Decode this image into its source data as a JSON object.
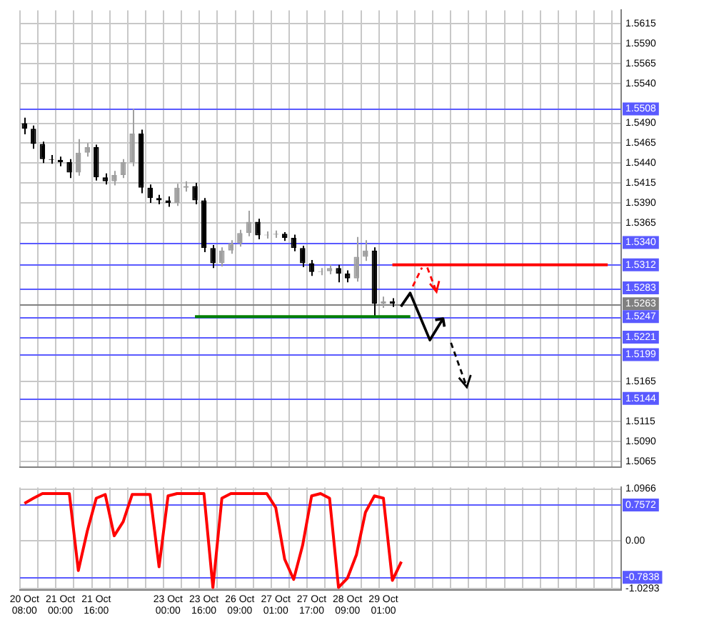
{
  "chart_data": [
    {
      "type": "candlestick",
      "categories": [
        null,
        null,
        null,
        null,
        null,
        null,
        null,
        null,
        null,
        null,
        null,
        null,
        null,
        null,
        null,
        null,
        null,
        null,
        null,
        null,
        null,
        null,
        null,
        null,
        null,
        null,
        null,
        null,
        null,
        null,
        null,
        null,
        null,
        null,
        null,
        null,
        null,
        null,
        null,
        null,
        null,
        null,
        null,
        null,
        null,
        null,
        null,
        null,
        null,
        null,
        null,
        null,
        null,
        null,
        null,
        null,
        null,
        null,
        null,
        null,
        null,
        null,
        null,
        null,
        null,
        null,
        null
      ],
      "colors": [
        "#000000",
        "#000000",
        "#000000",
        "#000000",
        "#000000",
        "#000000",
        "#a0a0a0",
        "#a0a0a0",
        "#000000",
        "#000000",
        "#a0a0a0",
        "#a0a0a0",
        "#a0a0a0",
        "#000000",
        "#000000",
        "#000000",
        "#000000",
        "#a0a0a0",
        "#a0a0a0",
        "#000000",
        "#000000",
        "#000000",
        "#a0a0a0",
        "#a0a0a0",
        "#a0a0a0",
        "#a0a0a0",
        "#000000",
        "#a0a0a0",
        "#a0a0a0",
        "#000000",
        "#000000",
        "#000000",
        "#000000",
        "#a0a0a0",
        "#a0a0a0",
        "#000000",
        "#000000",
        "#a0a0a0",
        "#a0a0a0",
        "#000000",
        "#a0a0a0",
        "#000000",
        null,
        null,
        null,
        null,
        null,
        null,
        null,
        null,
        null,
        null,
        null,
        null,
        null,
        null,
        null,
        null,
        null,
        null,
        null,
        null,
        null,
        null,
        null,
        null,
        null
      ],
      "ohlc": [
        [
          1.549,
          1.5497,
          1.5476,
          1.5483
        ],
        [
          1.5483,
          1.5487,
          1.5458,
          1.5464
        ],
        [
          1.5464,
          1.5467,
          1.544,
          1.5445
        ],
        [
          1.5445,
          1.545,
          1.5439,
          1.5444
        ],
        [
          1.5444,
          1.5448,
          1.5436,
          1.5441
        ],
        [
          1.5441,
          1.5445,
          1.5421,
          1.5428
        ],
        [
          1.5428,
          1.547,
          1.5424,
          1.5453
        ],
        [
          1.5453,
          1.5465,
          1.5448,
          1.546
        ],
        [
          1.546,
          1.5463,
          1.5418,
          1.5422
        ],
        [
          1.5422,
          1.5427,
          1.5413,
          1.5417
        ],
        [
          1.5417,
          1.543,
          1.5412,
          1.5425
        ],
        [
          1.5425,
          1.5445,
          1.5421,
          1.5441
        ],
        [
          1.5441,
          1.5508,
          1.5436,
          1.5477
        ],
        [
          1.5477,
          1.5482,
          1.5402,
          1.5409
        ],
        [
          1.5409,
          1.5413,
          1.539,
          1.5396
        ],
        [
          1.5396,
          1.54,
          1.5388,
          1.5393
        ],
        [
          1.5393,
          1.5398,
          1.5385,
          1.539
        ],
        [
          1.539,
          1.5414,
          1.5386,
          1.5409
        ],
        [
          1.5409,
          1.5417,
          1.5404,
          1.5411
        ],
        [
          1.5411,
          1.5415,
          1.5388,
          1.5393
        ],
        [
          1.5393,
          1.5396,
          1.5328,
          1.5333
        ],
        [
          1.5333,
          1.5337,
          1.5308,
          1.5314
        ],
        [
          1.5314,
          1.5334,
          1.531,
          1.533
        ],
        [
          1.533,
          1.5343,
          1.5326,
          1.5339
        ],
        [
          1.5339,
          1.5356,
          1.5335,
          1.5352
        ],
        [
          1.5352,
          1.538,
          1.5348,
          1.5366
        ],
        [
          1.5366,
          1.537,
          1.5344,
          1.5349
        ],
        [
          1.5349,
          1.5354,
          1.5345,
          1.535
        ],
        [
          1.535,
          1.5355,
          1.5346,
          1.5351
        ],
        [
          1.5351,
          1.5353,
          1.5342,
          1.5346
        ],
        [
          1.5346,
          1.535,
          1.5329,
          1.5333
        ],
        [
          1.5333,
          1.5336,
          1.5309,
          1.5314
        ],
        [
          1.5314,
          1.5318,
          1.5298,
          1.5303
        ],
        [
          1.5303,
          1.5308,
          1.5299,
          1.5304
        ],
        [
          1.5304,
          1.5312,
          1.53,
          1.5308
        ],
        [
          1.5308,
          1.5312,
          1.529,
          1.5301
        ],
        [
          1.5301,
          1.5305,
          1.529,
          1.5295
        ],
        [
          1.5295,
          1.5347,
          1.5291,
          1.5322
        ],
        [
          1.5322,
          1.5343,
          1.5317,
          1.533
        ],
        [
          1.533,
          1.5334,
          1.5247,
          1.5263
        ],
        [
          1.5263,
          1.5272,
          1.5258,
          1.5266
        ],
        [
          1.5266,
          1.527,
          1.5259,
          1.5263
        ],
        null,
        null,
        null,
        null,
        null,
        null,
        null,
        null,
        null,
        null,
        null,
        null,
        null,
        null,
        null,
        null,
        null,
        null,
        null,
        null,
        null,
        null,
        null,
        null,
        null
      ],
      "series": [
        {
          "type": "line",
          "color": "#ff0000",
          "values": [
            null,
            null,
            null,
            null,
            null,
            null,
            null,
            null,
            null,
            null,
            null,
            null,
            null,
            null,
            null,
            null,
            null,
            null,
            null,
            null,
            null,
            null,
            null,
            null,
            null,
            null,
            null,
            null,
            null,
            null,
            null,
            null,
            null,
            null,
            null,
            null,
            null,
            null,
            null,
            null,
            null,
            1.5312,
            1.5312,
            1.5312,
            1.5312,
            1.5312,
            1.5312,
            1.5312,
            1.5312,
            1.5312,
            1.5312,
            1.5312,
            1.5312,
            1.5312,
            1.5312,
            1.5312,
            1.5312,
            1.5312,
            1.5312,
            1.5312,
            1.5312,
            1.5312,
            1.5312,
            1.5312,
            1.5312,
            1.5312,
            null
          ]
        },
        {
          "type": "line",
          "color": "#008000",
          "values": [
            null,
            null,
            null,
            null,
            null,
            null,
            null,
            null,
            null,
            null,
            null,
            null,
            null,
            null,
            null,
            null,
            null,
            null,
            null,
            1.5247,
            1.5247,
            1.5247,
            1.5247,
            1.5247,
            1.5247,
            1.5247,
            1.5247,
            1.5247,
            1.5247,
            1.5247,
            1.5247,
            1.5247,
            1.5247,
            1.5247,
            1.5247,
            1.5247,
            1.5247,
            1.5247,
            1.5247,
            1.5247,
            1.5247,
            1.5247,
            1.5247,
            1.5247,
            null,
            null,
            null,
            null,
            null,
            null,
            null,
            null,
            null,
            null,
            null,
            null,
            null,
            null,
            null,
            null,
            null,
            null,
            null,
            null,
            null,
            null,
            null
          ]
        }
      ],
      "ylim": [
        1.5058,
        1.5632
      ],
      "yticks": [
        1.5615,
        {
          "value": 1.559,
          "label": "1.5590"
        },
        1.5565,
        {
          "value": 1.554,
          "label": "1.5540"
        },
        {
          "value": 1.549,
          "label": "1.5490"
        },
        1.5465,
        {
          "value": 1.544,
          "label": "1.5440"
        },
        1.5415,
        {
          "value": 1.539,
          "label": "1.5390"
        },
        1.5365,
        1.5165,
        1.5115,
        {
          "value": 1.509,
          "label": "1.5090"
        },
        1.5065
      ],
      "ref_lines": [
        {
          "axis": "y",
          "value": 1.5508,
          "label": "1.5508",
          "color": "#5a5aff"
        },
        {
          "axis": "y",
          "value": 1.534,
          "label": "1.5340",
          "color": "#5a5aff"
        },
        {
          "axis": "y",
          "value": 1.5312,
          "label": "1.5312",
          "color": "#5a5aff"
        },
        {
          "axis": "y",
          "value": 1.5283,
          "label": "1.5283",
          "color": "#5a5aff"
        },
        {
          "axis": "y",
          "value": 1.5263,
          "label": "1.5263",
          "color": "#808080"
        },
        {
          "axis": "y",
          "value": 1.5247,
          "label": "1.5247",
          "color": "#5a5aff"
        },
        {
          "axis": "y",
          "value": 1.5221,
          "label": "1.5221",
          "color": "#5a5aff"
        },
        {
          "axis": "y",
          "value": 1.5199,
          "label": "1.5199",
          "color": "#5a5aff"
        },
        {
          "axis": "y",
          "value": 1.5144,
          "label": "1.5144",
          "color": "#5a5aff"
        }
      ],
      "grid": true,
      "tick_labels": "y"
    },
    {
      "type": "line",
      "categories": [
        "20 Oct 08:00",
        null,
        null,
        null,
        "21 Oct 00:00",
        null,
        null,
        null,
        "21 Oct 16:00",
        null,
        null,
        null,
        null,
        null,
        null,
        null,
        "23 Oct 00:00",
        null,
        null,
        null,
        "23 Oct 16:00",
        null,
        null,
        null,
        "26 Oct 09:00",
        null,
        null,
        null,
        "27 Oct 01:00",
        null,
        null,
        null,
        "27 Oct 17:00",
        null,
        null,
        null,
        "28 Oct 09:00",
        null,
        null,
        null,
        "29 Oct 01:00",
        null,
        null,
        null,
        null,
        null,
        null,
        null,
        null,
        null,
        null,
        null,
        null,
        null,
        null,
        null,
        null,
        null,
        null,
        null,
        null,
        null,
        null,
        null,
        null,
        null,
        null
      ],
      "series": [
        {
          "color": "#ff0000",
          "values": [
            0.79,
            0.9,
            1.0,
            1.0,
            1.0,
            1.0,
            -0.64,
            0.2,
            0.9,
            0.98,
            0.1,
            0.4,
            0.98,
            0.98,
            0.98,
            -0.56,
            0.95,
            1.0,
            1.0,
            1.0,
            1.0,
            -1.0,
            0.9,
            1.0,
            1.0,
            1.0,
            1.0,
            1.0,
            0.7,
            -0.4,
            -0.83,
            -0.1,
            0.95,
            1.0,
            0.9,
            -1.0,
            -0.8,
            -0.3,
            0.6,
            0.95,
            0.9,
            -0.85,
            -0.45,
            null,
            null,
            null,
            null,
            null,
            null,
            null,
            null,
            null,
            null,
            null,
            null,
            null,
            null,
            null,
            null,
            null,
            null,
            null,
            null,
            null,
            null,
            null,
            null
          ]
        }
      ],
      "ylim": [
        -1.06,
        1.13
      ],
      "yticks": [
        1.0966,
        {
          "value": 0,
          "label": "0.00"
        },
        -1.0293
      ],
      "ref_lines": [
        {
          "axis": "y",
          "value": 0.7572,
          "label": "0.7572",
          "color": "#5a5aff"
        },
        {
          "axis": "y",
          "value": -0.7838,
          "label": "-0.7838",
          "color": "#5a5aff"
        }
      ],
      "grid": true
    }
  ]
}
